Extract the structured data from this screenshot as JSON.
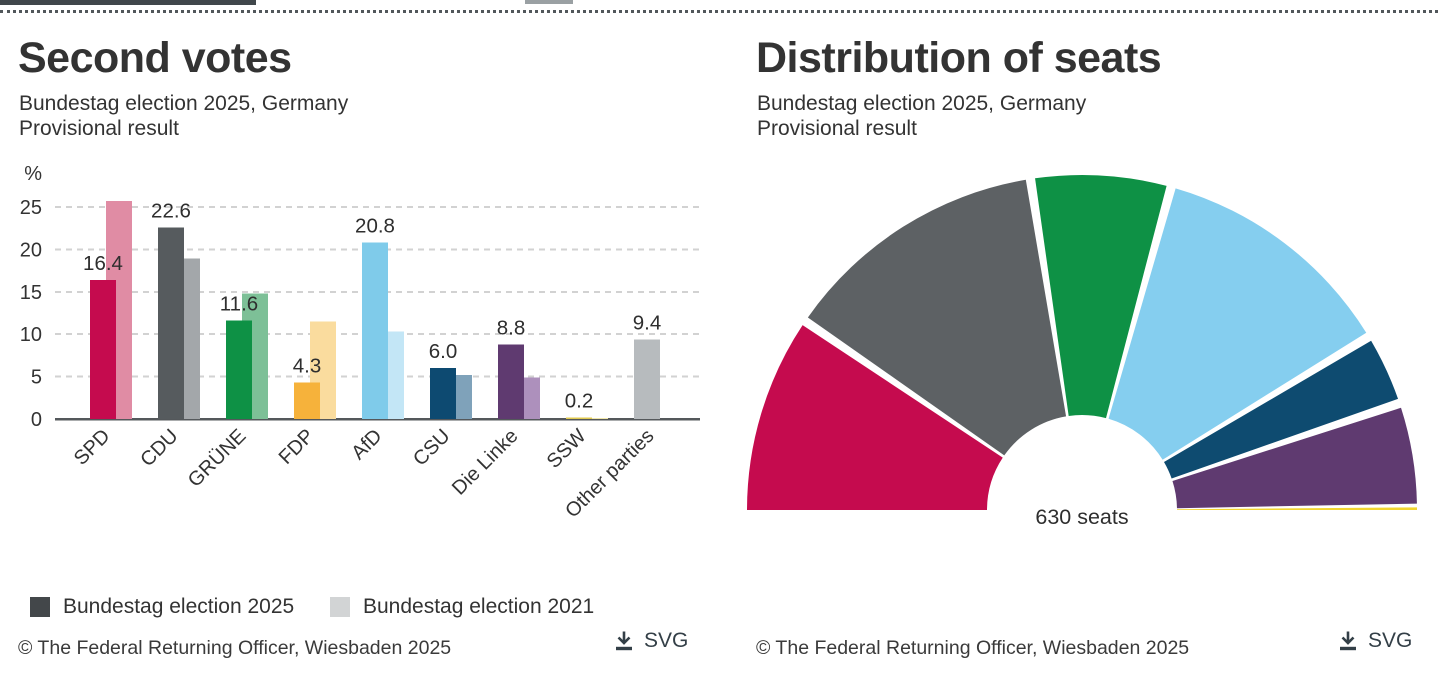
{
  "left_chart": {
    "title": "Second votes",
    "subtitle_line1": "Bundestag election 2025, Germany",
    "subtitle_line2": "Provisional result",
    "legend": [
      {
        "label": "Bundestag election 2025",
        "color": "#43474a"
      },
      {
        "label": "Bundestag election 2021",
        "color": "#d2d4d5"
      }
    ],
    "copyright": "© The Federal Returning Officer, Wiesbaden 2025",
    "download_label": "SVG"
  },
  "right_chart": {
    "title": "Distribution of seats",
    "subtitle_line1": "Bundestag election 2025, Germany",
    "subtitle_line2": "Provisional result",
    "center_label": "630 seats",
    "copyright": "© The Federal Returning Officer, Wiesbaden 2025",
    "download_label": "SVG"
  },
  "chart_data": [
    {
      "type": "bar",
      "title": "Second votes",
      "subtitle": "Bundestag election 2025, Germany — Provisional result",
      "unit": "%",
      "ylim": [
        0,
        25
      ],
      "yticks": [
        0,
        5,
        10,
        15,
        20,
        25
      ],
      "grid": "dashed horizontal gridlines, legend bottom-left",
      "categories": [
        "SPD",
        "CDU",
        "GRÜNE",
        "FDP",
        "AfD",
        "CSU",
        "Die Linke",
        "SSW",
        "Other parties"
      ],
      "value_labels": [
        "16.4",
        "22.6",
        "11.6",
        "4.3",
        "20.8",
        "6.0",
        "8.8",
        "0.2",
        "9.4"
      ],
      "series": [
        {
          "name": "Bundestag election 2025",
          "values": [
            16.4,
            22.6,
            11.6,
            4.3,
            20.8,
            6.0,
            8.8,
            0.2,
            9.4
          ],
          "colors": [
            "#c50b4e",
            "#565b5e",
            "#0e9145",
            "#f6b23b",
            "#7fcbea",
            "#0d4a71",
            "#5f3a70",
            "#e0c94f",
            "#b7bbbe"
          ]
        },
        {
          "name": "Bundestag election 2021",
          "values": [
            25.7,
            18.9,
            14.8,
            11.5,
            10.3,
            5.2,
            4.9,
            0.1,
            null
          ],
          "colors": [
            "#e08ca4",
            "#a3a7aa",
            "#7dc097",
            "#fadc9e",
            "#c3e6f6",
            "#7fa2ba",
            "#ad90bc",
            "#f0e6a8",
            null
          ]
        }
      ]
    },
    {
      "type": "half_donut",
      "title": "Distribution of seats",
      "subtitle": "Bundestag election 2025, Germany — Provisional result",
      "total_seats": 630,
      "center_label": "630 seats",
      "segments": [
        {
          "party": "SPD",
          "seats": 120,
          "color": "#c50b4e"
        },
        {
          "party": "CDU",
          "seats": 164,
          "color": "#5d6164"
        },
        {
          "party": "GRÜNE",
          "seats": 85,
          "color": "#0e9145"
        },
        {
          "party": "AfD",
          "seats": 152,
          "color": "#85ceef"
        },
        {
          "party": "CSU",
          "seats": 44,
          "color": "#0e4b70"
        },
        {
          "party": "Die Linke",
          "seats": 64,
          "color": "#5f3a70"
        },
        {
          "party": "SSW",
          "seats": 1,
          "color": "#f2d530"
        }
      ]
    }
  ]
}
